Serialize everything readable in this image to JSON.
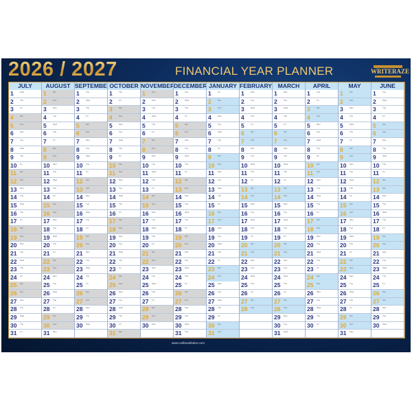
{
  "header": {
    "title": "2026 / 2027",
    "subtitle": "FINANCIAL YEAR PLANNER",
    "brand": "WRITERAZE"
  },
  "weekdays": [
    "Sun",
    "Mon",
    "Tue",
    "Wed",
    "Thu",
    "Fri",
    "Sat"
  ],
  "colors": {
    "weekend_half1": "#d6d6d6",
    "weekend_half2": "#c5e3f5",
    "weekday_number": "#2a3580",
    "weekend_number": "#e0a830",
    "accent_gold": "#c8902e",
    "background": "#0c2a5a"
  },
  "months": [
    {
      "name": "JULY",
      "days": 31,
      "start_weekday": 3
    },
    {
      "name": "AUGUST",
      "days": 31,
      "start_weekday": 6
    },
    {
      "name": "SEPTEMBER",
      "days": 30,
      "start_weekday": 2
    },
    {
      "name": "OCTOBER",
      "days": 31,
      "start_weekday": 4
    },
    {
      "name": "NOVEMBER",
      "days": 30,
      "start_weekday": 0
    },
    {
      "name": "DECEMBER",
      "days": 31,
      "start_weekday": 2
    },
    {
      "name": "JANUARY",
      "days": 31,
      "start_weekday": 5
    },
    {
      "name": "FEBRUARY",
      "days": 28,
      "start_weekday": 1
    },
    {
      "name": "MARCH",
      "days": 31,
      "start_weekday": 1
    },
    {
      "name": "APRIL",
      "days": 30,
      "start_weekday": 4
    },
    {
      "name": "MAY",
      "days": 31,
      "start_weekday": 6
    },
    {
      "name": "JUNE",
      "days": 30,
      "start_weekday": 2
    }
  ],
  "footer": {
    "url": "www.collinsdebden.com"
  }
}
